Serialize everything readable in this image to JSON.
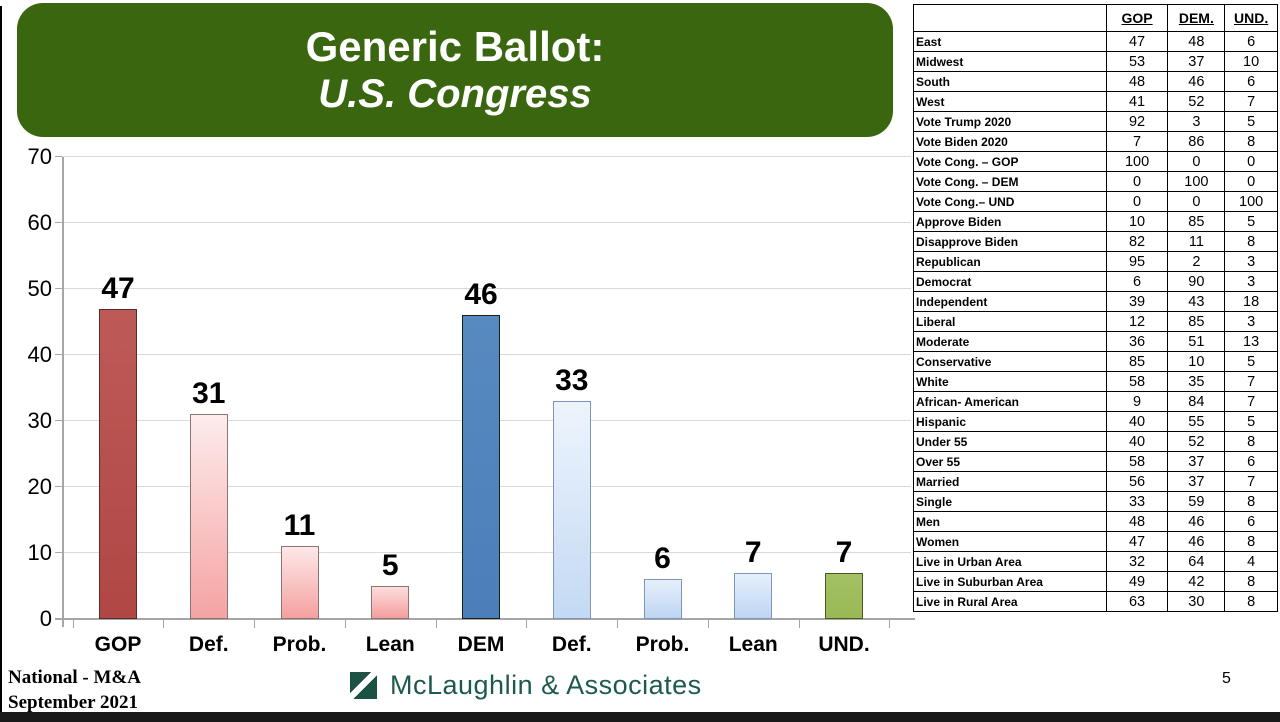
{
  "header": {
    "title_line1": "Generic Ballot:",
    "title_line2": "U.S. Congress"
  },
  "colors": {
    "banner_green": "#39660e",
    "logo_teal": "#1c5a4f",
    "gridline_gray": "#d9d9d9",
    "axis_gray": "#a6a6a6",
    "gop_red": "#b34a47",
    "dem_blue": "#4f81bd",
    "und_green": "#9bbb59",
    "pink_light": "#fdecec",
    "pink_deep": "#f5a3a3",
    "blue_light": "#eef4fd",
    "blue_deep": "#c3d9f3"
  },
  "chart_data": {
    "type": "bar",
    "title": "Generic Ballot: U.S. Congress",
    "categories": [
      "GOP",
      "Def.",
      "Prob.",
      "Lean",
      "DEM",
      "Def.",
      "Prob.",
      "Lean",
      "UND."
    ],
    "values": [
      47,
      31,
      11,
      5,
      46,
      33,
      6,
      7,
      7
    ],
    "xlabel": "",
    "ylabel": "",
    "ylim": [
      0,
      70
    ],
    "yticks": [
      0,
      10,
      20,
      30,
      40,
      50,
      60,
      70
    ],
    "grid": true,
    "legend": false,
    "bar_colors": [
      {
        "fill_top": "#bd5a57",
        "fill_bottom": "#b04745",
        "border": "#592b29"
      },
      {
        "fill_top": "#fdecec",
        "fill_bottom": "#f5a3a3",
        "border": "#8f7474"
      },
      {
        "fill_top": "#fde8e9",
        "fill_bottom": "#f5a0a0",
        "border": "#8f7474"
      },
      {
        "fill_top": "#fbdddd",
        "fill_bottom": "#f59e9e",
        "border": "#8f7474"
      },
      {
        "fill_top": "#578abf",
        "fill_bottom": "#4c7eba",
        "border": "#1c1c1c"
      },
      {
        "fill_top": "#eef4fd",
        "fill_bottom": "#c3d9f3",
        "border": "#7d96bd"
      },
      {
        "fill_top": "#e7f0fc",
        "fill_bottom": "#bed5f2",
        "border": "#7d96bd"
      },
      {
        "fill_top": "#e7f0fc",
        "fill_bottom": "#bed5f2",
        "border": "#7d96bd"
      },
      {
        "fill_top": "#a3c264",
        "fill_bottom": "#98b955",
        "border": "#4c5a22"
      }
    ]
  },
  "table": {
    "headers": [
      "",
      "GOP",
      "DEM.",
      "UND."
    ],
    "rows": [
      [
        "East",
        47,
        48,
        6
      ],
      [
        "Midwest",
        53,
        37,
        10
      ],
      [
        "South",
        48,
        46,
        6
      ],
      [
        "West",
        41,
        52,
        7
      ],
      [
        "Vote Trump 2020",
        92,
        3,
        5
      ],
      [
        "Vote Biden 2020",
        7,
        86,
        8
      ],
      [
        "Vote Cong. – GOP",
        100,
        0,
        0
      ],
      [
        "Vote Cong. – DEM",
        0,
        100,
        0
      ],
      [
        "Vote Cong.– UND",
        0,
        0,
        100
      ],
      [
        "Approve Biden",
        10,
        85,
        5
      ],
      [
        "Disapprove Biden",
        82,
        11,
        8
      ],
      [
        "Republican",
        95,
        2,
        3
      ],
      [
        "Democrat",
        6,
        90,
        3
      ],
      [
        "Independent",
        39,
        43,
        18
      ],
      [
        "Liberal",
        12,
        85,
        3
      ],
      [
        "Moderate",
        36,
        51,
        13
      ],
      [
        "Conservative",
        85,
        10,
        5
      ],
      [
        "White",
        58,
        35,
        7
      ],
      [
        "African- American",
        9,
        84,
        7
      ],
      [
        "Hispanic",
        40,
        55,
        5
      ],
      [
        "Under 55",
        40,
        52,
        8
      ],
      [
        "Over 55",
        58,
        37,
        6
      ],
      [
        "Married",
        56,
        37,
        7
      ],
      [
        "Single",
        33,
        59,
        8
      ],
      [
        "Men",
        48,
        46,
        6
      ],
      [
        "Women",
        47,
        46,
        8
      ],
      [
        "Live in Urban Area",
        32,
        64,
        4
      ],
      [
        "Live in Suburban Area",
        49,
        42,
        8
      ],
      [
        "Live in Rural Area",
        63,
        30,
        8
      ]
    ]
  },
  "footer": {
    "source_line1": "National - M&A",
    "source_line2": "September 2021",
    "logo_text": "McLaughlin & Associates",
    "page_number": "5"
  }
}
